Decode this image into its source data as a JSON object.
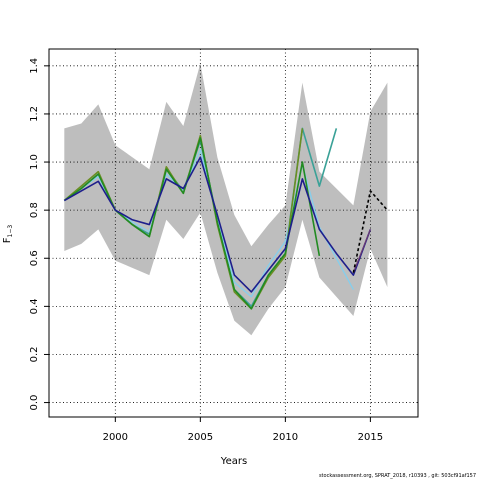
{
  "chart_data": {
    "type": "line",
    "xlabel": "Years",
    "ylabel_main": "F",
    "ylabel_sub": "1−3",
    "xlim": [
      1996.1,
      2017.8
    ],
    "ylim": [
      -0.06,
      1.47
    ],
    "xticks": [
      2000,
      2005,
      2010,
      2015
    ],
    "yticks": [
      0.0,
      0.2,
      0.4,
      0.6,
      0.8,
      1.0,
      1.2,
      1.4
    ],
    "ytick_labels": [
      "0.0",
      "0.2",
      "0.4",
      "0.6",
      "0.8",
      "1.0",
      "1.2",
      "1.4"
    ],
    "grid": true,
    "band": {
      "x": [
        1997,
        1998,
        1999,
        2000,
        2001,
        2002,
        2003,
        2004,
        2005,
        2006,
        2007,
        2008,
        2009,
        2010,
        2011,
        2012,
        2013,
        2014,
        2015,
        2016
      ],
      "upper": [
        1.14,
        1.16,
        1.24,
        1.07,
        1.02,
        0.97,
        1.25,
        1.15,
        1.41,
        1.02,
        0.78,
        0.65,
        0.74,
        0.82,
        1.33,
        0.96,
        0.89,
        0.82,
        1.21,
        1.33
      ],
      "lower": [
        0.63,
        0.66,
        0.72,
        0.59,
        0.56,
        0.53,
        0.76,
        0.68,
        0.79,
        0.54,
        0.34,
        0.28,
        0.39,
        0.48,
        0.76,
        0.52,
        0.44,
        0.36,
        0.64,
        0.48
      ],
      "color": "#bebebe"
    },
    "series": [
      {
        "color": "#3aa197",
        "width": 1.6,
        "x": [
          1997,
          1998,
          1999,
          2000,
          2001,
          2002,
          2003,
          2004,
          2005,
          2006,
          2007,
          2008,
          2009,
          2010,
          2011,
          2012,
          2013
        ],
        "y": [
          0.84,
          0.89,
          0.95,
          0.8,
          0.74,
          0.7,
          0.97,
          0.88,
          1.09,
          0.76,
          0.47,
          0.4,
          0.53,
          0.62,
          1.14,
          0.9,
          1.14
        ]
      },
      {
        "color": "#87ceeb",
        "width": 1.4,
        "x": [
          1997,
          1998,
          1999,
          2000,
          2001,
          2002,
          2003,
          2004,
          2005,
          2006,
          2007,
          2008,
          2009,
          2010,
          2011,
          2012,
          2013,
          2014
        ],
        "y": [
          0.84,
          0.89,
          0.94,
          0.8,
          0.75,
          0.71,
          0.95,
          0.88,
          1.05,
          0.76,
          0.5,
          0.44,
          0.57,
          0.67,
          0.99,
          0.73,
          0.6,
          0.47
        ]
      },
      {
        "color": "#6b8e23",
        "width": 1.6,
        "x": [
          1997,
          1998,
          1999,
          2000,
          2001,
          2002,
          2003,
          2004,
          2005,
          2006,
          2007,
          2008,
          2009,
          2010,
          2011
        ],
        "y": [
          0.84,
          0.9,
          0.96,
          0.8,
          0.74,
          0.69,
          0.98,
          0.87,
          1.11,
          0.74,
          0.46,
          0.39,
          0.52,
          0.61,
          1.14
        ]
      },
      {
        "color": "#228b22",
        "width": 1.6,
        "x": [
          1997,
          1998,
          1999,
          2000,
          2001,
          2002,
          2003,
          2004,
          2005,
          2006,
          2007,
          2008,
          2009,
          2010,
          2011,
          2012
        ],
        "y": [
          0.84,
          0.89,
          0.95,
          0.8,
          0.74,
          0.69,
          0.97,
          0.87,
          1.1,
          0.75,
          0.47,
          0.39,
          0.53,
          0.62,
          1.0,
          0.61
        ]
      },
      {
        "color": "#1e1e8c",
        "width": 1.6,
        "x": [
          1997,
          1998,
          1999,
          2000,
          2001,
          2002,
          2003,
          2004,
          2005,
          2006,
          2007,
          2008,
          2009,
          2010,
          2011,
          2012,
          2013,
          2014,
          2015
        ],
        "y": [
          0.84,
          0.88,
          0.92,
          0.8,
          0.76,
          0.74,
          0.93,
          0.89,
          1.02,
          0.78,
          0.53,
          0.46,
          0.55,
          0.64,
          0.93,
          0.72,
          0.62,
          0.53,
          0.72
        ]
      },
      {
        "color": "#6b3a73",
        "width": 1.2,
        "x": [
          2014,
          2015
        ],
        "y": [
          0.54,
          0.72
        ]
      },
      {
        "color": "#000000",
        "width": 1.6,
        "dash": "3,2.5",
        "x": [
          2014,
          2015,
          2016
        ],
        "y": [
          0.54,
          0.88,
          0.8
        ]
      }
    ]
  },
  "footer": "stockassessment.org, SPRAT_2018, r10393 , git: 503cf91af157"
}
